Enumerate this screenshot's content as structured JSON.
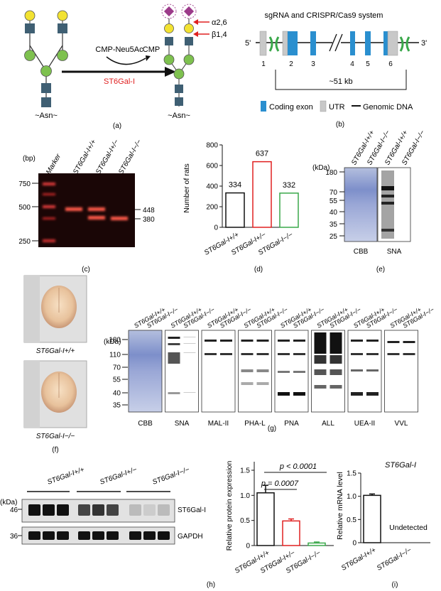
{
  "panel_a": {
    "label": "(a)",
    "left_base": "~Asn~",
    "right_base": "~Asn~",
    "donor": "CMP-Neu5Ac",
    "byproduct": "CMP",
    "enzyme": "ST6Gal-I",
    "linkage1": "α2,6",
    "linkage2": "β1,4",
    "colors": {
      "galactose": "#f2e232",
      "mannose": "#7ec14f",
      "glcnac": "#3f5f73",
      "sialic": "#9c3b8a",
      "enzyme": "#e02020",
      "arrow": "#e02020"
    }
  },
  "panel_b": {
    "label": "(b)",
    "title": "sgRNA and CRISPR/Cas9 system",
    "end5": "5'",
    "end3": "3'",
    "exon_numbers": [
      "1",
      "2",
      "3",
      "4",
      "5",
      "6"
    ],
    "size": "~51 kb",
    "legend": {
      "coding": "Coding exon",
      "utr": "UTR",
      "genomic": "Genomic DNA"
    },
    "colors": {
      "coding": "#2a8fcf",
      "utr": "#c8c8c8",
      "sgrna": "#3aa84a"
    }
  },
  "panel_c": {
    "label": "(c)",
    "unit": "(bp)",
    "lanes": [
      "Marker",
      "ST6Gal-I+/+",
      "ST6Gal-I+/−",
      "ST6Gal-I−/−"
    ],
    "marker_sizes": [
      "750",
      "500",
      "250"
    ],
    "product_sizes": [
      "448",
      "380"
    ]
  },
  "panel_d": {
    "label": "(d)",
    "chart_data": {
      "type": "bar",
      "categories": [
        "ST6Gal-I+/+",
        "ST6Gal-I+/−",
        "ST6Gal-I−/−"
      ],
      "values": [
        334,
        637,
        332
      ],
      "ylabel": "Number of rats",
      "ylim": [
        0,
        800
      ],
      "yticks": [
        "0",
        "200",
        "400",
        "600",
        "800"
      ],
      "colors": [
        "#111111",
        "#e02020",
        "#3aa84a"
      ]
    }
  },
  "panel_e": {
    "label": "(e)",
    "unit": "(kDa)",
    "lanes": [
      "ST6Gal-I+/+",
      "ST6Gal-I−/−",
      "ST6Gal-I+/+",
      "ST6Gal-I−/−"
    ],
    "markers": [
      "180",
      "70",
      "55",
      "40",
      "35",
      "25"
    ],
    "stains": [
      "CBB",
      "SNA"
    ]
  },
  "panel_f": {
    "label": "(f)",
    "caption_top": "ST6Gal-I+/+",
    "caption_bottom": "ST6Gal-I−/−"
  },
  "panel_g": {
    "label": "(g)",
    "unit": "(kDa)",
    "lane_pair": [
      "ST6Gal-I+/+",
      "ST6Gal-I−/−"
    ],
    "markers": [
      "180",
      "110",
      "70",
      "55",
      "40",
      "35"
    ],
    "stains": [
      "CBB",
      "SNA",
      "MAL-II",
      "PHA-L",
      "PNA",
      "ALL",
      "UEA-II",
      "VVL"
    ]
  },
  "panel_h": {
    "label": "(h)",
    "unit": "(kDa)",
    "groups": [
      "ST6Gal-I+/+",
      "ST6Gal-I+/−",
      "ST6Gal-I−/−"
    ],
    "markers": [
      "46",
      "36"
    ],
    "proteins": [
      "ST6Gal-I",
      "GAPDH"
    ],
    "chart_data": {
      "type": "bar",
      "categories": [
        "ST6Gal-I+/+",
        "ST6Gal-I+/−",
        "ST6Gal-I−/−"
      ],
      "values": [
        1.05,
        0.49,
        0.05
      ],
      "errors": [
        0.15,
        0.04,
        0.02
      ],
      "ylabel": "Relative protein expression",
      "ylim": [
        0,
        1.5
      ],
      "yticks": [
        "0",
        "0.5",
        "1.0",
        "1.5"
      ],
      "colors": [
        "#111111",
        "#e02020",
        "#3aa84a"
      ],
      "annotations": [
        "p = 0.0007",
        "p < 0.0001"
      ]
    }
  },
  "panel_i": {
    "label": "(i)",
    "chart_data": {
      "type": "bar",
      "title": "ST6Gal-I",
      "categories": [
        "ST6Gal-I+/+",
        "ST6Gal-I−/−"
      ],
      "values": [
        1.02,
        null
      ],
      "errors": [
        0.03,
        null
      ],
      "ylabel": "Relative mRNA level",
      "ylim": [
        0,
        1.5
      ],
      "yticks": [
        "0",
        "0.5",
        "1.0",
        "1.5"
      ],
      "annotation": "Undetected",
      "colors": [
        "#111111"
      ]
    }
  }
}
